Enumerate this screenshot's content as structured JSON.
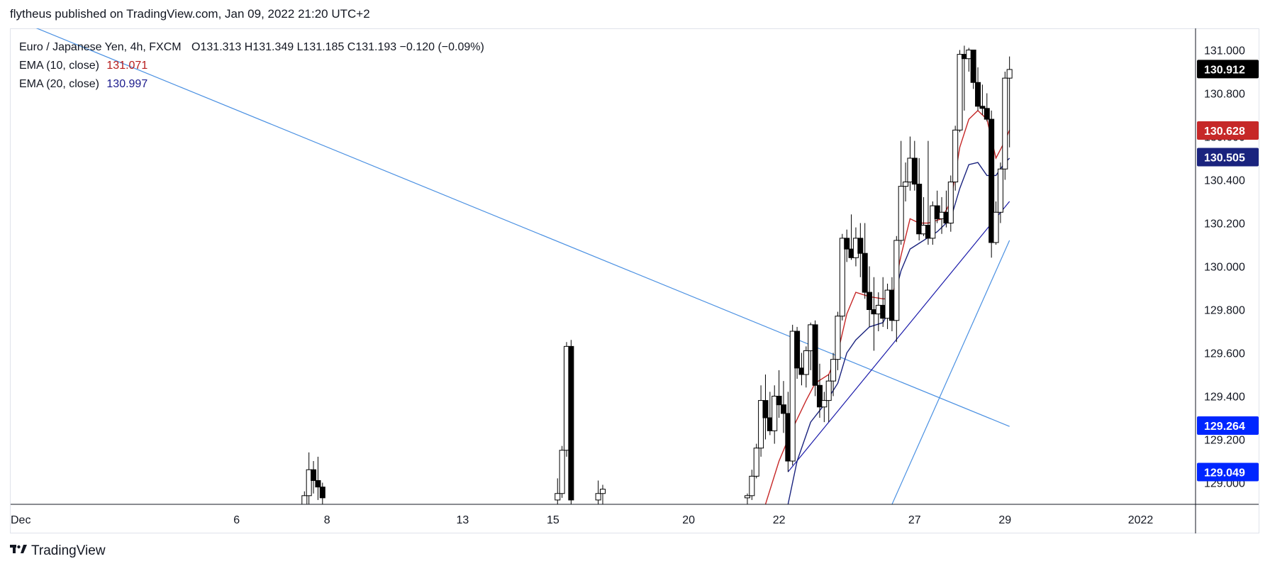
{
  "publisher": {
    "text": "flytheus published on TradingView.com, Jan 09, 2022 21:20 UTC+2"
  },
  "legend": {
    "symbol": "Euro / Japanese Yen, 4h, FXCM",
    "ohlc": "O131.313  H131.349  L131.185  C131.193  −0.120 (−0.09%)",
    "ema10_label": "EMA (10, close)",
    "ema10_value": "131.071",
    "ema20_label": "EMA (20, close)",
    "ema20_value": "130.997"
  },
  "branding": {
    "logo": "𝟏𝟕",
    "name": "TradingView"
  },
  "colors": {
    "up_body": "#ffffff",
    "down_body": "#000000",
    "wick": "#000000",
    "ema10": "#c62828",
    "ema20": "#1a237e",
    "trendline": "#2962ff",
    "trendline_light": "#4a90e2",
    "grid": "#f0f3fa",
    "axis": "#131722"
  },
  "chart_data": {
    "type": "candlestick",
    "title": "Euro / Japanese Yen, 4h, FXCM",
    "ylim": [
      128.9,
      131.1
    ],
    "y_ticks": [
      "131.000",
      "130.800",
      "130.600",
      "130.400",
      "130.200",
      "130.000",
      "129.800",
      "129.600",
      "129.400",
      "129.200",
      "129.000"
    ],
    "x_ticks": [
      {
        "label": "Dec",
        "x": 0
      },
      {
        "label": "6",
        "x": 5
      },
      {
        "label": "8",
        "x": 7
      },
      {
        "label": "13",
        "x": 10
      },
      {
        "label": "15",
        "x": 12
      },
      {
        "label": "20",
        "x": 15
      },
      {
        "label": "22",
        "x": 17
      },
      {
        "label": "27",
        "x": 20
      },
      {
        "label": "29",
        "x": 22
      },
      {
        "label": "2022",
        "x": 25
      }
    ],
    "x_range": [
      0,
      26.2
    ],
    "price_labels": [
      {
        "value": "130.912",
        "price": 130.912,
        "bg": "#000000",
        "fg": "#ffffff"
      },
      {
        "value": "130.628",
        "price": 130.628,
        "bg": "#c62828",
        "fg": "#ffffff"
      },
      {
        "value": "130.505",
        "price": 130.505,
        "bg": "#1a237e",
        "fg": "#ffffff"
      },
      {
        "value": "129.264",
        "price": 129.264,
        "bg": "#0026ff",
        "fg": "#ffffff"
      },
      {
        "value": "129.049",
        "price": 129.049,
        "bg": "#0026ff",
        "fg": "#ffffff"
      }
    ],
    "candles": [
      [
        6.5,
        128.9,
        128.96,
        128.88,
        128.94
      ],
      [
        6.6,
        128.94,
        129.14,
        128.9,
        129.06
      ],
      [
        6.7,
        129.06,
        129.1,
        128.95,
        129.01
      ],
      [
        6.8,
        129.01,
        129.12,
        128.92,
        128.98
      ],
      [
        6.9,
        128.98,
        129.0,
        128.9,
        128.93
      ],
      [
        12.1,
        128.92,
        129.02,
        128.88,
        128.95
      ],
      [
        12.2,
        128.95,
        129.17,
        128.93,
        129.15
      ],
      [
        12.3,
        129.15,
        129.65,
        129.12,
        129.63
      ],
      [
        12.4,
        129.63,
        129.66,
        128.9,
        128.92
      ],
      [
        13.0,
        128.92,
        129.01,
        128.9,
        128.95
      ],
      [
        13.1,
        128.95,
        128.99,
        128.9,
        128.97
      ],
      [
        16.3,
        128.93,
        128.95,
        128.9,
        128.94
      ],
      [
        16.4,
        128.94,
        129.06,
        128.92,
        129.03
      ],
      [
        16.5,
        129.03,
        129.18,
        129.02,
        129.16
      ],
      [
        16.6,
        129.16,
        129.45,
        129.12,
        129.38
      ],
      [
        16.7,
        129.38,
        129.5,
        129.2,
        129.3
      ],
      [
        16.8,
        129.3,
        129.42,
        129.22,
        129.24
      ],
      [
        16.9,
        129.24,
        129.45,
        129.18,
        129.4
      ],
      [
        17.0,
        129.4,
        129.52,
        129.3,
        129.36
      ],
      [
        17.1,
        129.36,
        129.47,
        129.23,
        129.32
      ],
      [
        17.2,
        129.32,
        129.42,
        129.05,
        129.1
      ],
      [
        17.3,
        129.1,
        129.73,
        129.08,
        129.7
      ],
      [
        17.4,
        129.7,
        129.72,
        129.48,
        129.53
      ],
      [
        17.5,
        129.53,
        129.6,
        129.45,
        129.5
      ],
      [
        17.6,
        129.5,
        129.63,
        129.44,
        129.61
      ],
      [
        17.7,
        129.61,
        129.74,
        129.52,
        129.73
      ],
      [
        17.8,
        129.73,
        129.75,
        129.4,
        129.45
      ],
      [
        17.9,
        129.45,
        129.55,
        129.3,
        129.35
      ],
      [
        18.0,
        129.35,
        129.42,
        129.28,
        129.38
      ],
      [
        18.1,
        129.38,
        129.5,
        129.28,
        129.47
      ],
      [
        18.2,
        129.47,
        129.6,
        129.4,
        129.57
      ],
      [
        18.3,
        129.57,
        129.79,
        129.52,
        129.77
      ],
      [
        18.4,
        129.77,
        130.15,
        129.75,
        130.13
      ],
      [
        18.5,
        130.13,
        130.17,
        130.02,
        130.08
      ],
      [
        18.6,
        130.08,
        130.24,
        130.03,
        130.04
      ],
      [
        18.7,
        130.04,
        130.18,
        130.0,
        130.13
      ],
      [
        18.8,
        130.13,
        130.2,
        129.95,
        130.06
      ],
      [
        18.9,
        130.06,
        130.2,
        129.85,
        129.88
      ],
      [
        19.0,
        129.88,
        130.0,
        129.72,
        129.8
      ],
      [
        19.1,
        129.8,
        129.95,
        129.61,
        129.78
      ],
      [
        19.2,
        129.78,
        129.88,
        129.7,
        129.82
      ],
      [
        19.3,
        129.82,
        129.95,
        129.72,
        129.76
      ],
      [
        19.4,
        129.76,
        129.92,
        129.71,
        129.89
      ],
      [
        19.5,
        129.89,
        129.95,
        129.7,
        129.75
      ],
      [
        19.6,
        129.75,
        130.14,
        129.65,
        130.12
      ],
      [
        19.7,
        130.12,
        130.58,
        130.1,
        130.37
      ],
      [
        19.8,
        130.37,
        130.48,
        130.3,
        130.39
      ],
      [
        19.9,
        130.39,
        130.6,
        130.35,
        130.5
      ],
      [
        20.0,
        130.5,
        130.58,
        130.35,
        130.38
      ],
      [
        20.1,
        130.38,
        130.5,
        130.12,
        130.15
      ],
      [
        20.2,
        130.15,
        130.32,
        130.14,
        130.19
      ],
      [
        20.3,
        130.19,
        130.58,
        130.1,
        130.13
      ],
      [
        20.4,
        130.13,
        130.3,
        130.1,
        130.28
      ],
      [
        20.5,
        130.28,
        130.35,
        130.2,
        130.22
      ],
      [
        20.6,
        130.22,
        130.32,
        130.15,
        130.25
      ],
      [
        20.7,
        130.25,
        130.35,
        130.18,
        130.2
      ],
      [
        20.8,
        130.2,
        130.42,
        130.16,
        130.39
      ],
      [
        20.9,
        130.39,
        130.65,
        130.35,
        130.63
      ],
      [
        21.0,
        130.63,
        131.0,
        130.62,
        130.98
      ],
      [
        21.1,
        130.98,
        131.02,
        130.72,
        130.96
      ],
      [
        21.2,
        130.96,
        131.01,
        130.9,
        131.0
      ],
      [
        21.3,
        131.0,
        131.0,
        130.82,
        130.85
      ],
      [
        21.4,
        130.85,
        130.92,
        130.72,
        130.74
      ],
      [
        21.5,
        130.74,
        130.84,
        130.7,
        130.73
      ],
      [
        21.6,
        130.73,
        130.8,
        130.67,
        130.68
      ],
      [
        21.7,
        130.68,
        130.72,
        130.04,
        130.11
      ],
      [
        21.8,
        130.11,
        130.3,
        130.1,
        130.25
      ],
      [
        21.9,
        130.25,
        130.48,
        130.2,
        130.45
      ],
      [
        22.0,
        130.45,
        130.9,
        130.4,
        130.87
      ],
      [
        22.1,
        130.87,
        130.97,
        130.55,
        130.91
      ]
    ],
    "ema10": [
      [
        16.7,
        128.9
      ],
      [
        17.0,
        129.1
      ],
      [
        17.3,
        129.25
      ],
      [
        17.6,
        129.38
      ],
      [
        17.8,
        129.46
      ],
      [
        18.1,
        129.5
      ],
      [
        18.3,
        129.6
      ],
      [
        18.5,
        129.78
      ],
      [
        18.7,
        129.88
      ],
      [
        19.0,
        129.86
      ],
      [
        19.3,
        129.85
      ],
      [
        19.5,
        129.85
      ],
      [
        19.7,
        130.05
      ],
      [
        19.9,
        130.22
      ],
      [
        20.1,
        130.2
      ],
      [
        20.3,
        130.2
      ],
      [
        20.6,
        130.22
      ],
      [
        20.8,
        130.3
      ],
      [
        21.0,
        130.55
      ],
      [
        21.2,
        130.68
      ],
      [
        21.4,
        130.72
      ],
      [
        21.6,
        130.68
      ],
      [
        21.8,
        130.5
      ],
      [
        22.0,
        130.58
      ],
      [
        22.1,
        130.63
      ]
    ],
    "ema20": [
      [
        17.2,
        128.9
      ],
      [
        17.4,
        129.1
      ],
      [
        17.7,
        129.28
      ],
      [
        18.0,
        129.36
      ],
      [
        18.3,
        129.46
      ],
      [
        18.5,
        129.6
      ],
      [
        18.7,
        129.66
      ],
      [
        19.0,
        129.72
      ],
      [
        19.3,
        129.74
      ],
      [
        19.5,
        129.82
      ],
      [
        19.7,
        129.98
      ],
      [
        19.9,
        130.08
      ],
      [
        20.2,
        130.12
      ],
      [
        20.5,
        130.16
      ],
      [
        20.8,
        130.22
      ],
      [
        21.0,
        130.36
      ],
      [
        21.2,
        130.47
      ],
      [
        21.4,
        130.48
      ],
      [
        21.6,
        130.42
      ],
      [
        21.8,
        130.42
      ],
      [
        22.0,
        130.48
      ],
      [
        22.1,
        130.5
      ]
    ],
    "trendlines": [
      {
        "points": [
          [
            0,
            131.15
          ],
          [
            22.1,
            129.26
          ]
        ],
        "color": "#4a90e2"
      },
      {
        "points": [
          [
            17.2,
            129.05
          ],
          [
            22.1,
            130.3
          ]
        ],
        "color": "#1a1aaa"
      },
      {
        "points": [
          [
            19.5,
            128.9
          ],
          [
            22.1,
            130.12
          ]
        ],
        "color": "#4a90e2"
      }
    ]
  }
}
